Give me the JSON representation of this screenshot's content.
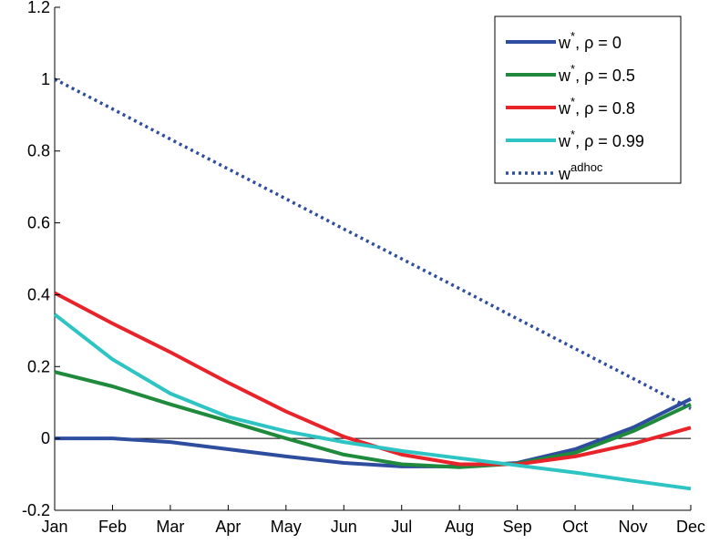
{
  "chart_data": {
    "type": "line",
    "categories": [
      "Jan",
      "Feb",
      "Mar",
      "Apr",
      "May",
      "Jun",
      "Jul",
      "Aug",
      "Sep",
      "Oct",
      "Nov",
      "Dec"
    ],
    "ylim": [
      -0.2,
      1.2
    ],
    "yticks": [
      "-0.2",
      "0",
      "0.2",
      "0.4",
      "0.6",
      "0.8",
      "1",
      "1.2"
    ],
    "ytick_values": [
      -0.2,
      0,
      0.2,
      0.4,
      0.6,
      0.8,
      1,
      1.2
    ],
    "grid": false,
    "zero_line": true,
    "legend_position": "top-right",
    "series": [
      {
        "name": "w*, ρ = 0",
        "base": "w",
        "sup": "*",
        "suffix": ", ρ = 0",
        "color": "#2e4d9e",
        "style": "solid",
        "values": [
          0.0,
          0.0,
          -0.01,
          -0.03,
          -0.05,
          -0.068,
          -0.078,
          -0.078,
          -0.068,
          -0.03,
          0.03,
          0.11
        ]
      },
      {
        "name": "w*, ρ = 0.5",
        "base": "w",
        "sup": "*",
        "suffix": ", ρ = 0.5",
        "color": "#1f8a3c",
        "style": "solid",
        "values": [
          0.185,
          0.145,
          0.095,
          0.048,
          0.0,
          -0.045,
          -0.072,
          -0.08,
          -0.07,
          -0.04,
          0.02,
          0.095
        ]
      },
      {
        "name": "w*, ρ = 0.8",
        "base": "w",
        "sup": "*",
        "suffix": ", ρ = 0.8",
        "color": "#e8232a",
        "style": "solid",
        "values": [
          0.405,
          0.32,
          0.24,
          0.155,
          0.075,
          0.005,
          -0.045,
          -0.072,
          -0.072,
          -0.05,
          -0.015,
          0.03
        ]
      },
      {
        "name": "w*, ρ = 0.99",
        "base": "w",
        "sup": "*",
        "suffix": ", ρ = 0.99",
        "color": "#2ec4c4",
        "style": "solid",
        "values": [
          0.345,
          0.22,
          0.125,
          0.06,
          0.02,
          -0.01,
          -0.035,
          -0.055,
          -0.075,
          -0.095,
          -0.118,
          -0.14
        ]
      },
      {
        "name": "w^adhoc",
        "base": "w",
        "sup": "adhoc",
        "suffix": "",
        "color": "#2e4d9e",
        "style": "dotted",
        "values": [
          1.0,
          0.917,
          0.833,
          0.75,
          0.667,
          0.583,
          0.5,
          0.417,
          0.333,
          0.25,
          0.167,
          0.083
        ]
      }
    ]
  }
}
